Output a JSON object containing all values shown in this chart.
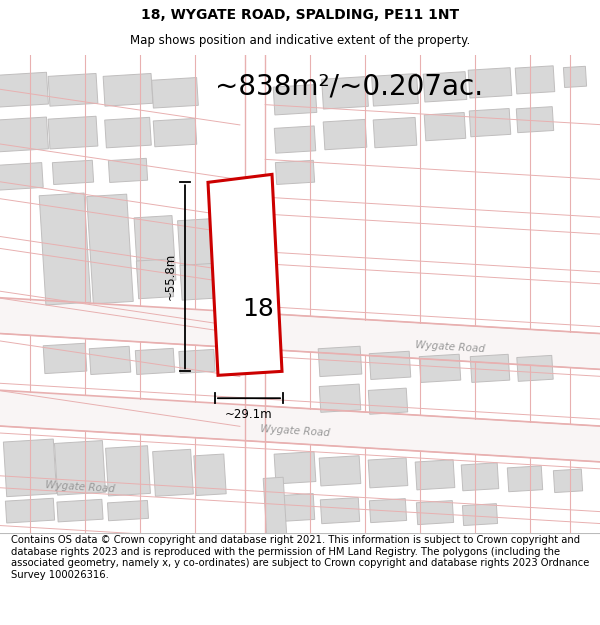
{
  "title": "18, WYGATE ROAD, SPALDING, PE11 1NT",
  "subtitle": "Map shows position and indicative extent of the property.",
  "area_text": "~838m²/~0.207ac.",
  "dim_height": "~55.8m",
  "dim_width": "~29.1m",
  "property_number": "18",
  "road_label_1": "Wygate Road",
  "road_label_2": "Wygate Road",
  "road_label_3": "Wygate Road",
  "footer_text": "Contains OS data © Crown copyright and database right 2021. This information is subject to Crown copyright and database rights 2023 and is reproduced with the permission of HM Land Registry. The polygons (including the associated geometry, namely x, y co-ordinates) are subject to Crown copyright and database rights 2023 Ordnance Survey 100026316.",
  "map_bg": "#ffffff",
  "road_color": "#e8b0b0",
  "road_fill": "#f5eeee",
  "building_fill": "#d8d8d8",
  "building_edge": "#c0bebe",
  "plot_outline": "#f0c0c0",
  "property_fill": "#ffffff",
  "property_edge": "#cc0000",
  "title_fontsize": 10,
  "subtitle_fontsize": 8.5,
  "area_fontsize": 20,
  "footer_fontsize": 7.2
}
